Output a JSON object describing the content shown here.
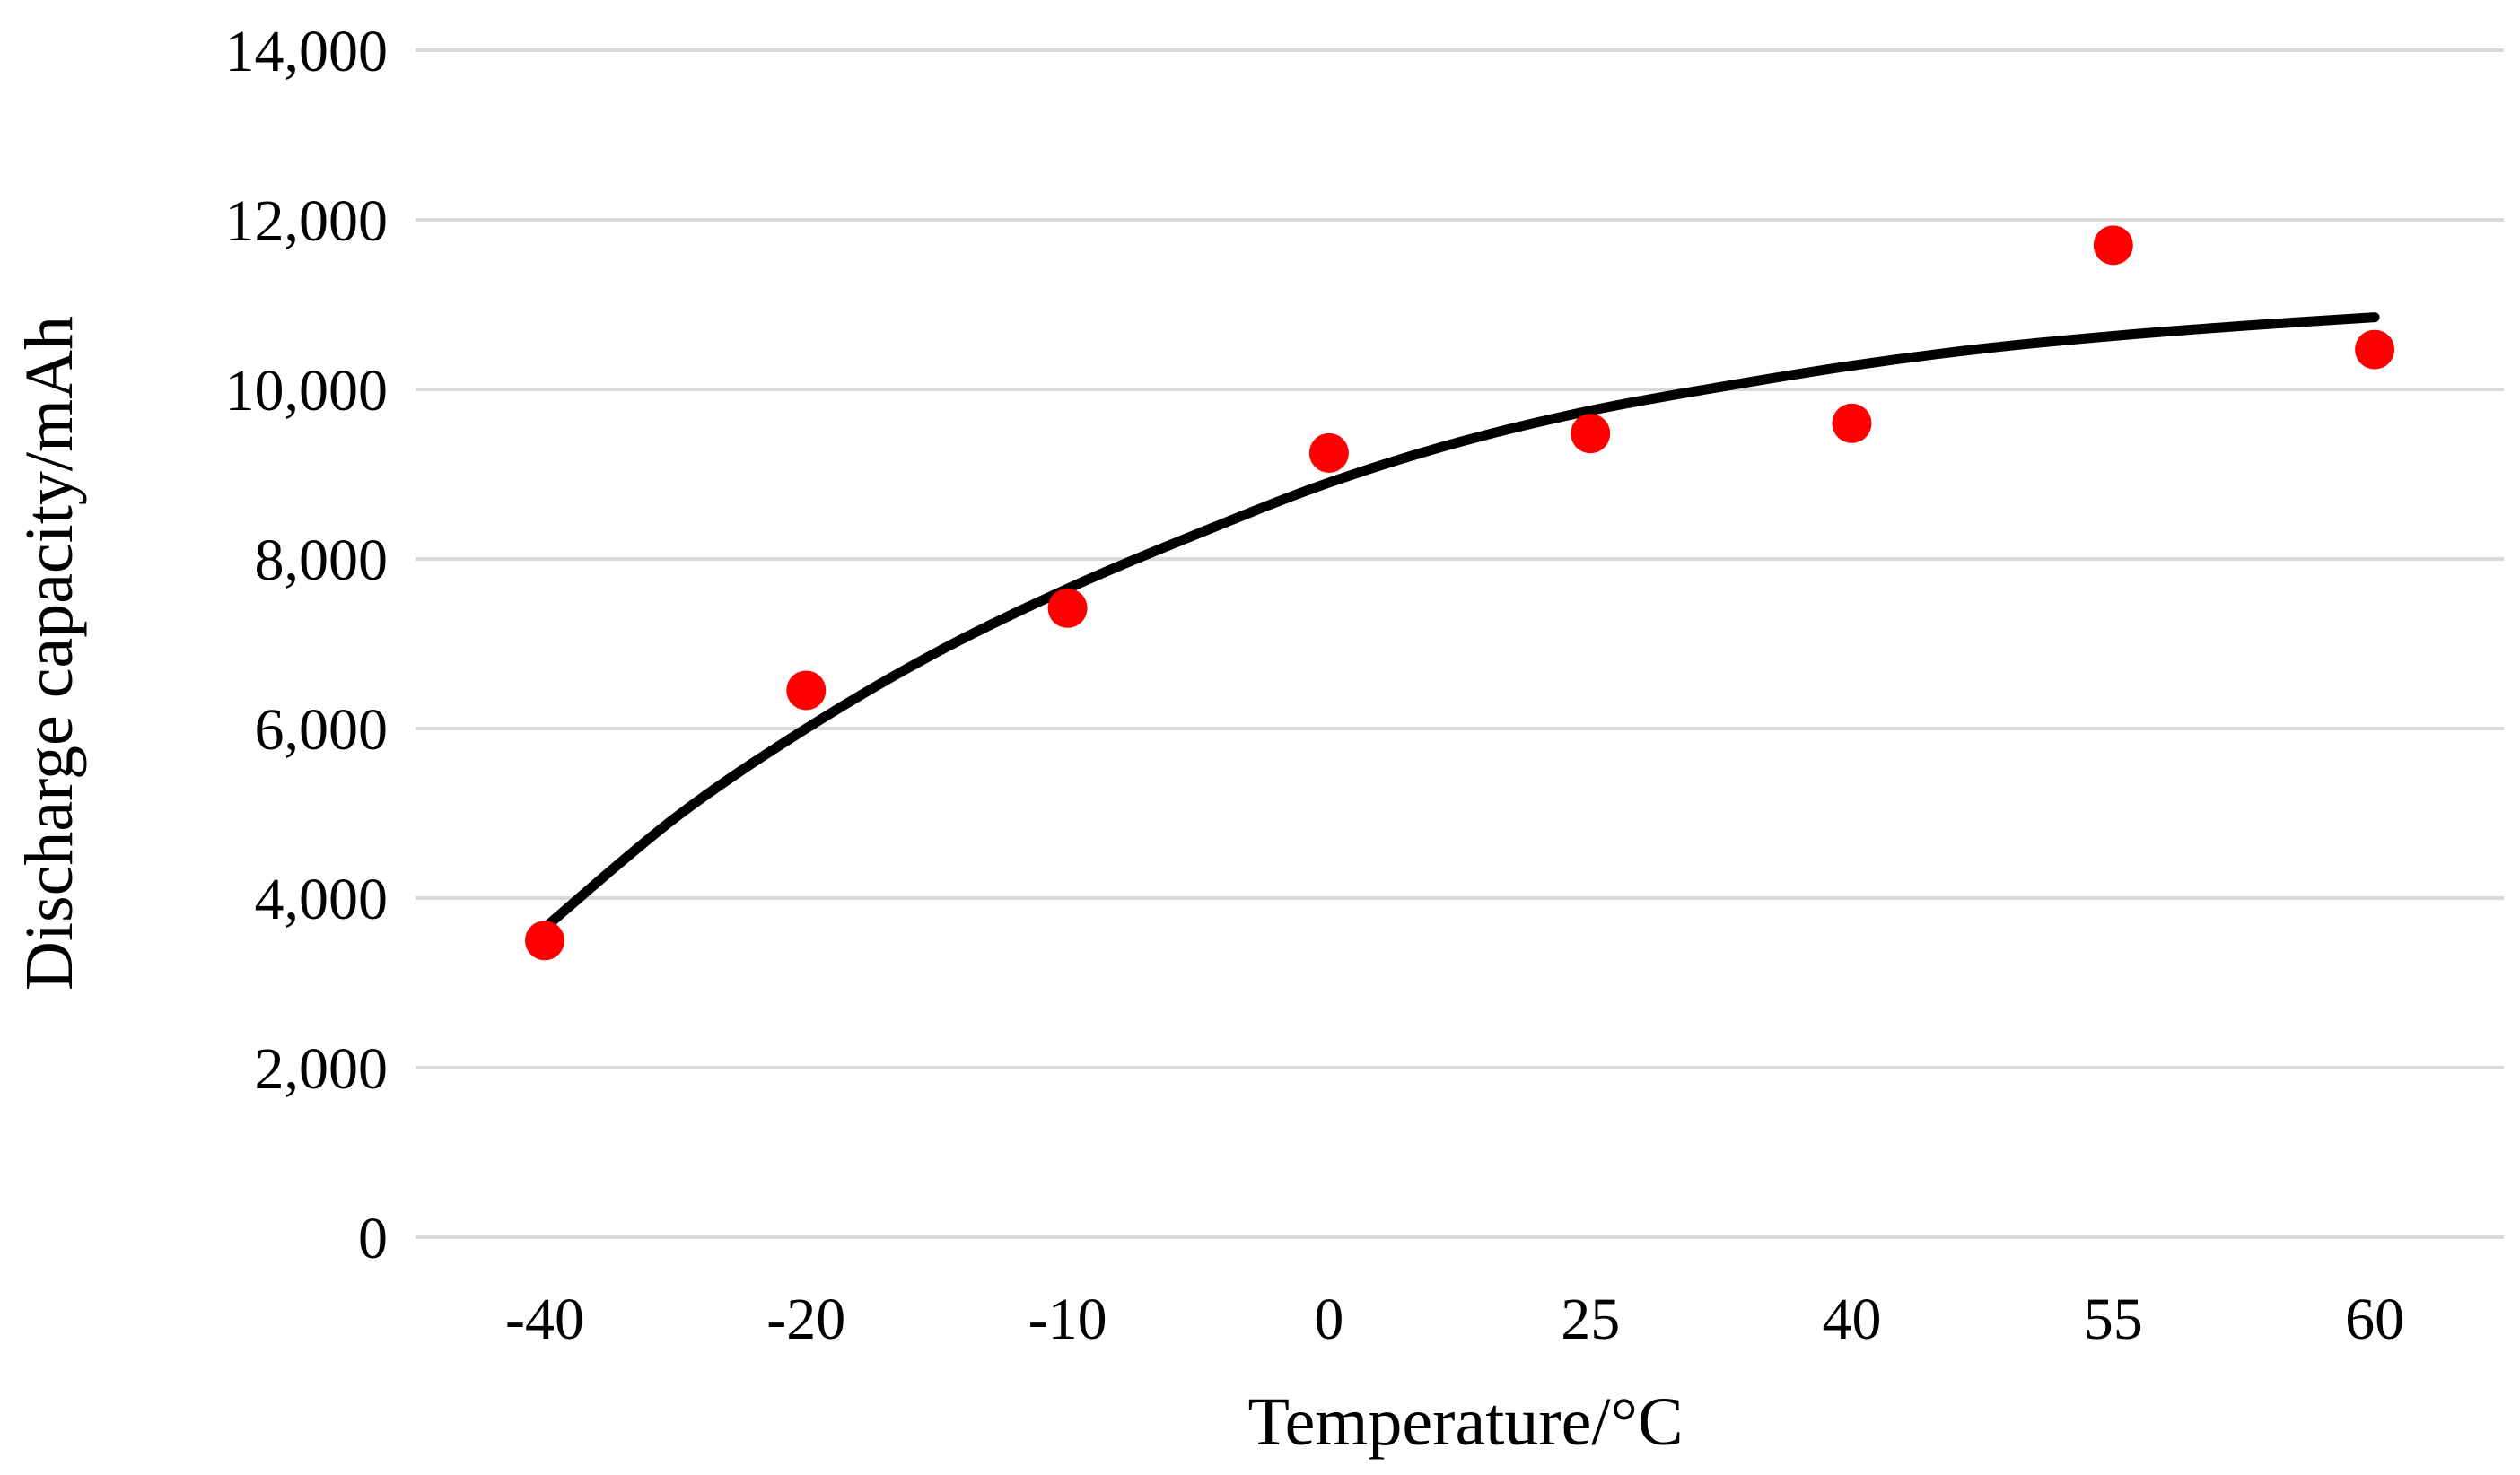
{
  "chart_data": {
    "type": "scatter",
    "title": "",
    "xlabel": "Temperature/°C",
    "ylabel": "Discharge capacity/mAh",
    "categories": [
      "-40",
      "-20",
      "-10",
      "0",
      "25",
      "40",
      "55",
      "60"
    ],
    "series": [
      {
        "name": "Discharge capacity",
        "marker": "circle",
        "color": "#ff0000",
        "values": [
          3500,
          6450,
          7420,
          9250,
          9480,
          9600,
          11700,
          10470
        ]
      }
    ],
    "trendline": {
      "type": "polynomial",
      "color": "#000000",
      "points": [
        {
          "x_index": 0.0,
          "y": 3650
        },
        {
          "x_index": 0.5,
          "y": 4950
        },
        {
          "x_index": 1.0,
          "y": 6000
        },
        {
          "x_index": 1.5,
          "y": 6900
        },
        {
          "x_index": 2.0,
          "y": 7650
        },
        {
          "x_index": 2.5,
          "y": 8300
        },
        {
          "x_index": 3.0,
          "y": 8900
        },
        {
          "x_index": 3.5,
          "y": 9380
        },
        {
          "x_index": 4.0,
          "y": 9750
        },
        {
          "x_index": 4.5,
          "y": 10030
        },
        {
          "x_index": 5.0,
          "y": 10280
        },
        {
          "x_index": 5.5,
          "y": 10480
        },
        {
          "x_index": 6.0,
          "y": 10630
        },
        {
          "x_index": 6.5,
          "y": 10750
        },
        {
          "x_index": 7.0,
          "y": 10850
        }
      ]
    },
    "y_ticks": [
      "0",
      "2,000",
      "4,000",
      "6,000",
      "8,000",
      "10,000",
      "12,000",
      "14,000"
    ],
    "y_tick_values": [
      0,
      2000,
      4000,
      6000,
      8000,
      10000,
      12000,
      14000
    ],
    "ylim": [
      0,
      14000
    ],
    "grid": "horizontal",
    "legend": "none"
  }
}
